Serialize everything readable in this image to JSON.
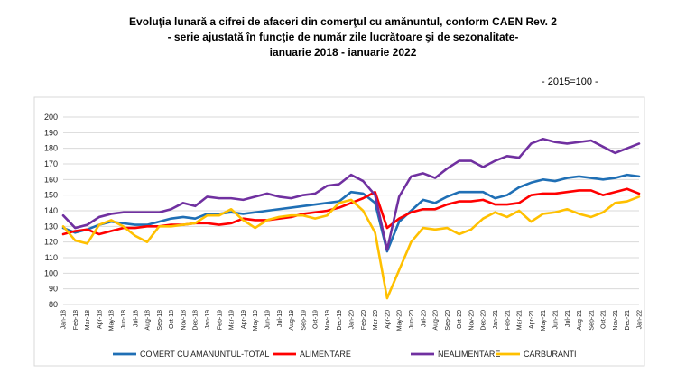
{
  "header": {
    "title_line1": "Evoluţia lunară a cifrei de afaceri din comerţul cu amănuntul,  conform CAEN Rev. 2",
    "title_line2": "- serie ajustată în funcţie de număr zile lucrătoare şi de sezonalitate-",
    "title_line3": "ianuarie 2018 -  ianuarie 2022",
    "index_note": "- 2015=100 -"
  },
  "chart_data": {
    "type": "line",
    "ylim": [
      80,
      200
    ],
    "yticks": [
      80,
      90,
      100,
      110,
      120,
      130,
      140,
      150,
      160,
      170,
      180,
      190,
      200
    ],
    "grid": true,
    "legend_position": "bottom",
    "categories": [
      "Jan-18",
      "Feb-18",
      "Mar-18",
      "Apr-18",
      "May-18",
      "Jun-18",
      "Jul-18",
      "Aug-18",
      "Sep-18",
      "Oct-18",
      "Nov-18",
      "Dec-18",
      "Jan-19",
      "Feb-19",
      "Mar-19",
      "Apr-19",
      "May-19",
      "Jun-19",
      "Jul-19",
      "Aug-19",
      "Sep-19",
      "Oct-19",
      "Nov-19",
      "Dec-19",
      "Jan-20",
      "Feb-20",
      "Mar-20",
      "Apr-20",
      "May-20",
      "Jun-20",
      "Jul-20",
      "Aug-20",
      "Sep-20",
      "Oct-20",
      "Nov-20",
      "Dec-20",
      "Jan-21",
      "Feb-21",
      "Mar-21",
      "Apr-21",
      "May-21",
      "Jun-21",
      "Jul-21",
      "Aug-21",
      "Sep-21",
      "Oct-21",
      "Nov-21",
      "Dec-21",
      "Jan-22"
    ],
    "series": [
      {
        "name": "COMERT CU AMANUNTUL-TOTAL",
        "color": "#1f6fb5",
        "values": [
          129,
          126,
          128,
          131,
          133,
          132,
          131,
          131,
          133,
          135,
          136,
          135,
          138,
          138,
          139,
          138,
          139,
          140,
          141,
          142,
          143,
          144,
          145,
          146,
          152,
          151,
          145,
          114,
          133,
          140,
          147,
          145,
          149,
          152,
          152,
          152,
          148,
          150,
          155,
          158,
          160,
          159,
          161,
          162,
          161,
          160,
          161,
          163,
          162
        ]
      },
      {
        "name": "ALIMENTARE",
        "color": "#ff0000",
        "values": [
          125,
          127,
          128,
          125,
          127,
          129,
          129,
          130,
          130,
          131,
          131,
          132,
          132,
          131,
          132,
          135,
          134,
          134,
          135,
          136,
          138,
          139,
          140,
          142,
          145,
          148,
          152,
          129,
          135,
          139,
          141,
          141,
          144,
          146,
          146,
          147,
          144,
          144,
          145,
          150,
          151,
          151,
          152,
          153,
          153,
          150,
          152,
          154,
          151
        ]
      },
      {
        "name": "NEALIMENTARE",
        "color": "#7030a0",
        "values": [
          137,
          129,
          131,
          136,
          138,
          139,
          139,
          139,
          139,
          141,
          145,
          143,
          149,
          148,
          148,
          147,
          149,
          151,
          149,
          148,
          150,
          151,
          156,
          157,
          163,
          159,
          150,
          115,
          149,
          162,
          164,
          161,
          167,
          172,
          172,
          168,
          172,
          175,
          174,
          183,
          186,
          184,
          183,
          184,
          185,
          181,
          177,
          180,
          183
        ]
      },
      {
        "name": "CARBURANTI",
        "color": "#ffc000",
        "values": [
          130,
          121,
          119,
          131,
          134,
          130,
          124,
          120,
          130,
          130,
          131,
          132,
          137,
          137,
          141,
          134,
          129,
          134,
          136,
          137,
          137,
          135,
          137,
          145,
          147,
          140,
          126,
          84,
          102,
          120,
          129,
          128,
          129,
          125,
          128,
          135,
          139,
          136,
          140,
          133,
          138,
          139,
          141,
          138,
          136,
          139,
          145,
          146,
          149
        ]
      }
    ]
  }
}
